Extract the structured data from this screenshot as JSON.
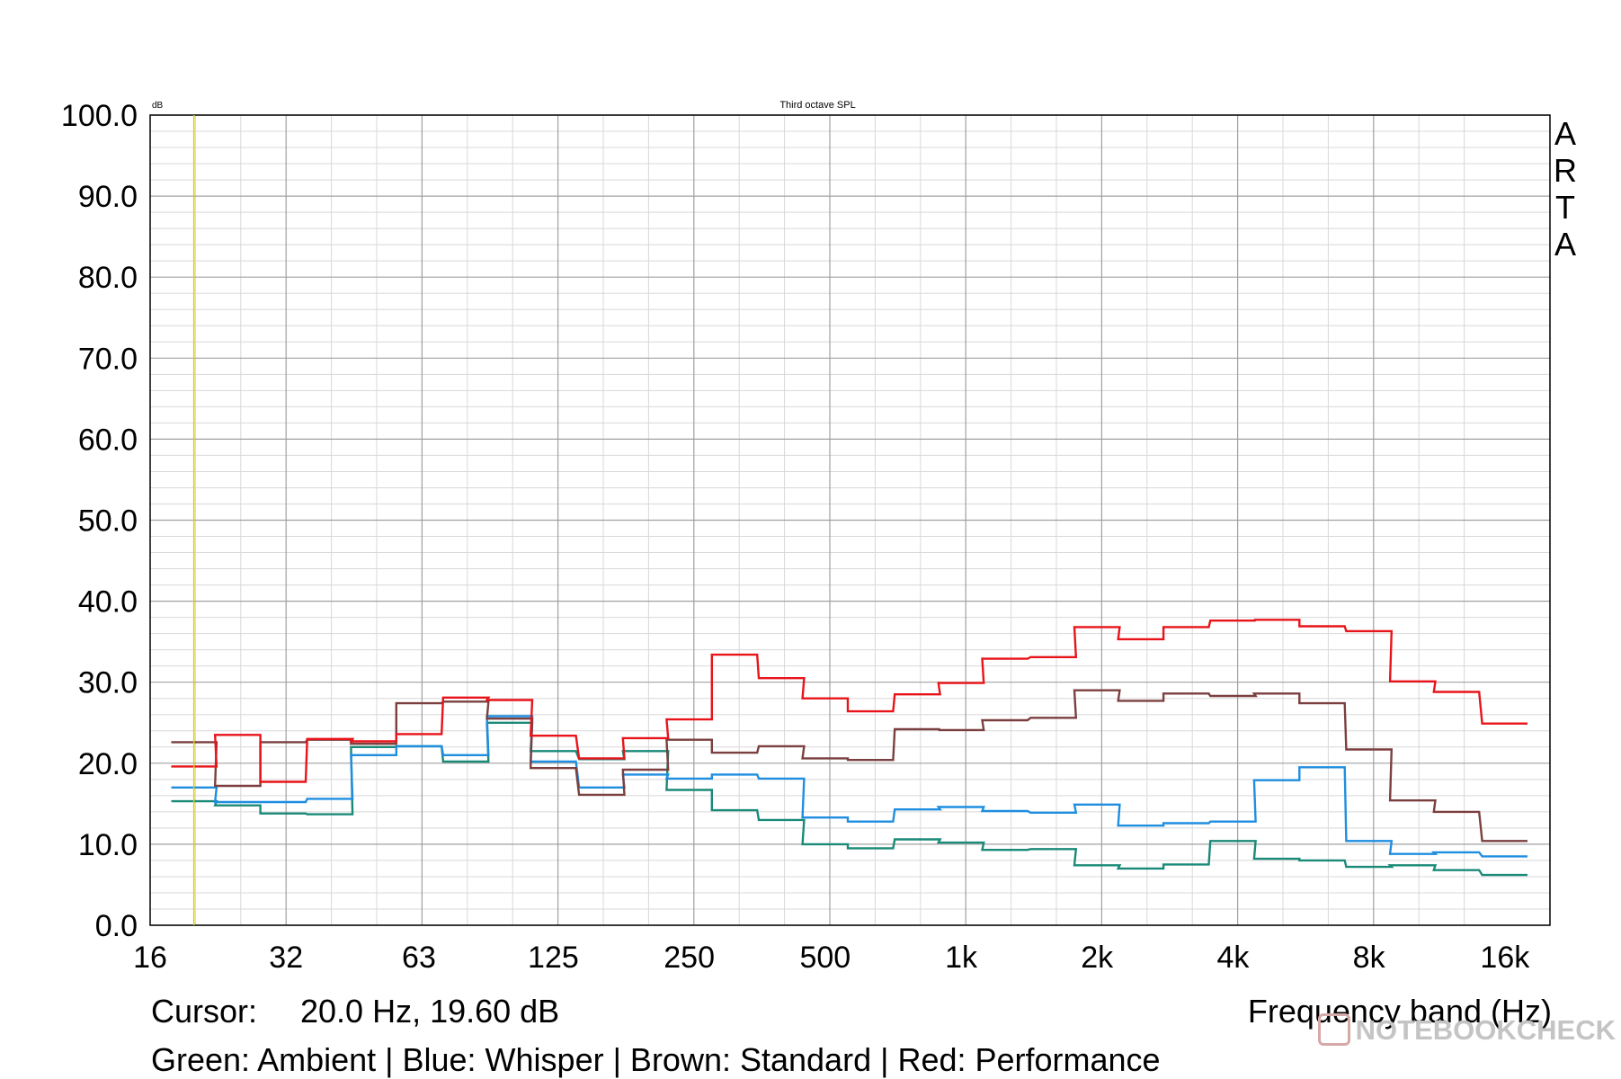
{
  "chart_data": {
    "type": "line",
    "step": true,
    "title": "Third octave SPL",
    "yunit": "dB",
    "xlabel": "Frequency band (Hz)",
    "xscale": "log",
    "ylim": [
      0,
      100
    ],
    "xlim": [
      16,
      20000
    ],
    "yticks": [
      "0.0",
      "10.0",
      "20.0",
      "30.0",
      "40.0",
      "50.0",
      "60.0",
      "70.0",
      "80.0",
      "90.0",
      "100.0"
    ],
    "xticks": [
      {
        "label": "16",
        "hz": 16
      },
      {
        "label": "32",
        "hz": 32
      },
      {
        "label": "63",
        "hz": 63
      },
      {
        "label": "125",
        "hz": 125
      },
      {
        "label": "250",
        "hz": 250
      },
      {
        "label": "500",
        "hz": 500
      },
      {
        "label": "1k",
        "hz": 1000
      },
      {
        "label": "2k",
        "hz": 2000
      },
      {
        "label": "4k",
        "hz": 4000
      },
      {
        "label": "8k",
        "hz": 8000
      },
      {
        "label": "16k",
        "hz": 16000
      }
    ],
    "grid": true,
    "cursor_hz": 20,
    "bands_hz": [
      20,
      25,
      31.5,
      40,
      50,
      63,
      80,
      100,
      125,
      160,
      200,
      250,
      315,
      400,
      500,
      630,
      800,
      1000,
      1250,
      1600,
      2000,
      2500,
      3150,
      4000,
      5000,
      6300,
      8000,
      10000,
      12500,
      16000
    ],
    "series": [
      {
        "name": "Ambient",
        "color": "#1a8a78",
        "values": [
          15.3,
          14.8,
          13.8,
          13.7,
          22.0,
          22.1,
          20.2,
          25.0,
          21.5,
          20.5,
          21.5,
          16.7,
          14.2,
          13.0,
          10.0,
          9.5,
          10.6,
          10.2,
          9.3,
          9.4,
          7.4,
          7.0,
          7.5,
          10.4,
          8.2,
          8.0,
          7.2,
          7.4,
          6.8,
          6.2
        ]
      },
      {
        "name": "Whisper",
        "color": "#1f8ee0",
        "values": [
          17.0,
          15.2,
          15.2,
          15.6,
          21.0,
          22.1,
          21.0,
          25.8,
          20.2,
          17.0,
          18.6,
          18.1,
          18.6,
          18.1,
          13.3,
          12.8,
          14.3,
          14.6,
          14.1,
          13.9,
          14.9,
          12.3,
          12.6,
          12.8,
          17.9,
          19.5,
          10.4,
          8.8,
          9.0,
          8.5
        ]
      },
      {
        "name": "Standard",
        "color": "#7b3f3f",
        "values": [
          22.6,
          17.2,
          22.6,
          22.9,
          22.4,
          27.4,
          27.6,
          25.5,
          19.4,
          16.1,
          19.2,
          22.9,
          21.3,
          22.1,
          20.6,
          20.4,
          24.2,
          24.1,
          25.3,
          25.6,
          29.0,
          27.7,
          28.6,
          28.3,
          28.6,
          27.4,
          21.7,
          15.4,
          14.0,
          10.4
        ]
      },
      {
        "name": "Performance",
        "color": "#e8141a",
        "values": [
          19.6,
          23.5,
          17.7,
          23.0,
          22.7,
          23.6,
          28.1,
          27.8,
          23.4,
          20.6,
          23.1,
          25.4,
          33.4,
          30.5,
          28.0,
          26.4,
          28.5,
          29.9,
          32.9,
          33.1,
          36.8,
          35.3,
          36.8,
          37.6,
          37.7,
          36.9,
          36.3,
          30.1,
          28.8,
          24.9
        ]
      }
    ]
  },
  "cursor_readout": {
    "label": "Cursor:",
    "value": "20.0 Hz, 19.60 dB"
  },
  "legend_text": "Green: Ambient | Blue: Whisper | Brown: Standard | Red: Performance",
  "brand_vertical": [
    "A",
    "R",
    "T",
    "A"
  ],
  "watermark": "NOTEBOOKCHECK"
}
